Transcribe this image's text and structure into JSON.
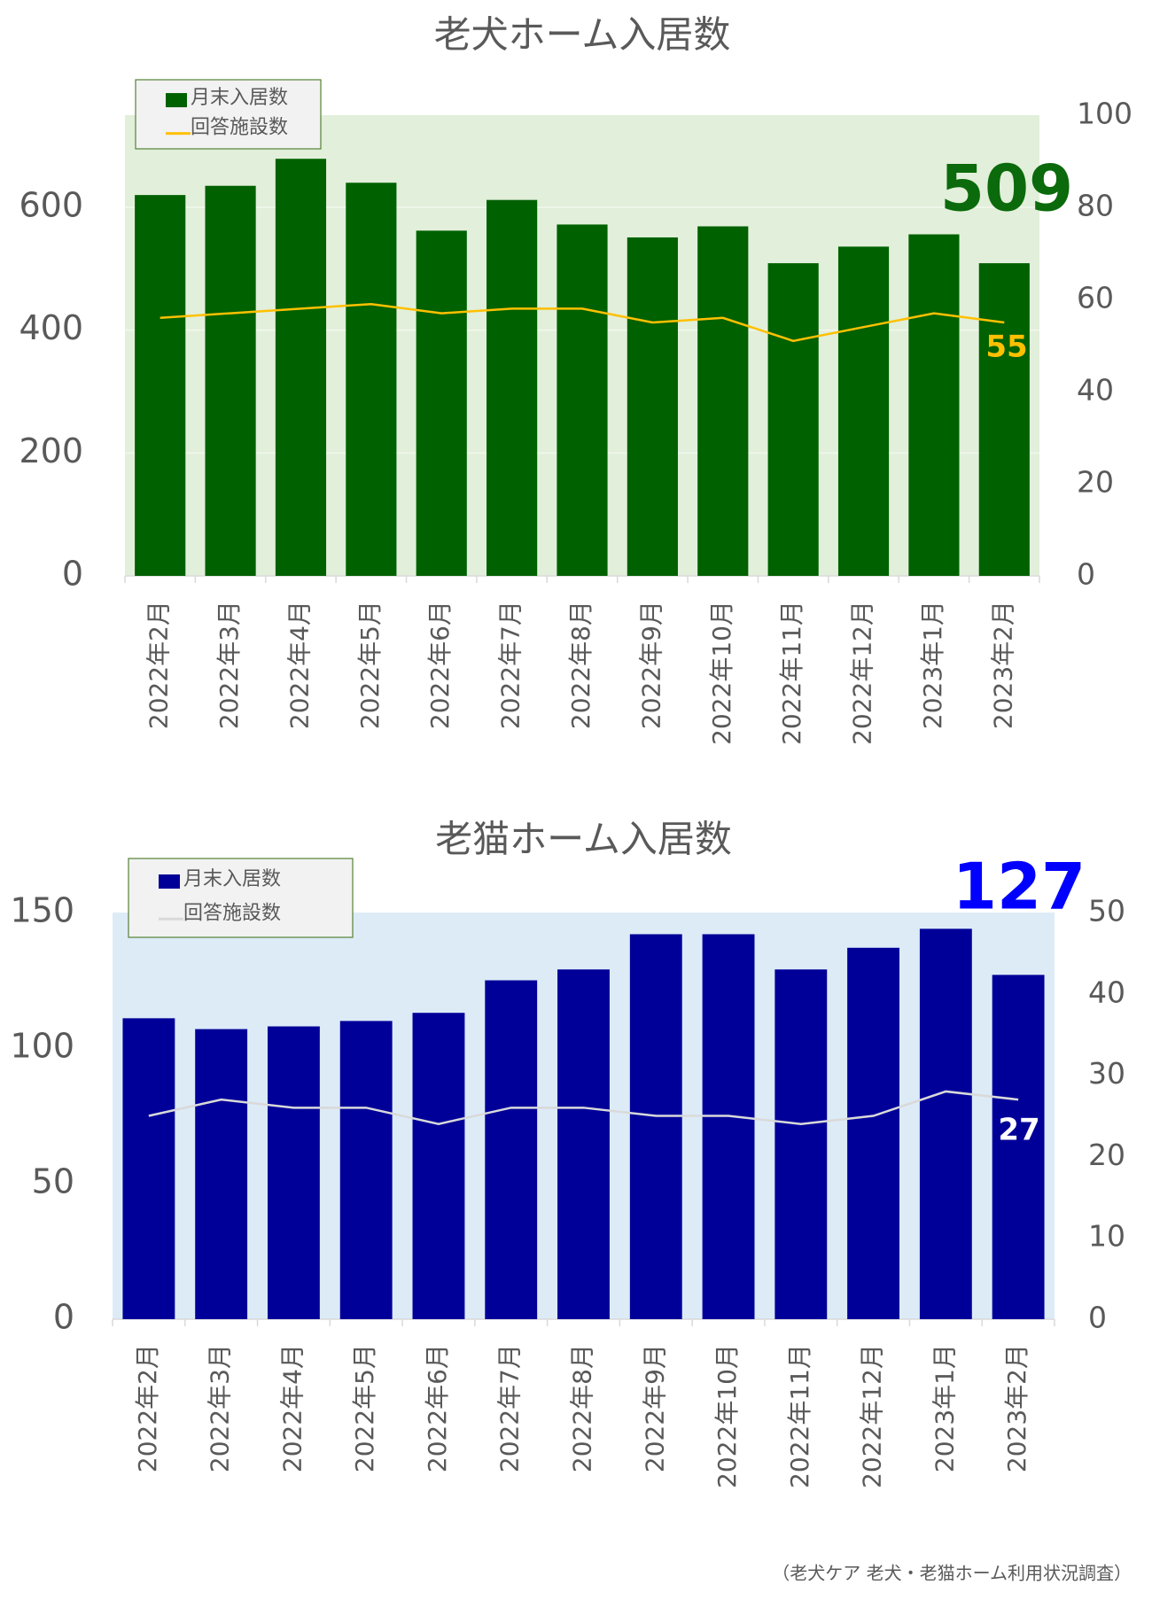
{
  "chart_data": [
    {
      "type": "bar",
      "title": "老犬ホーム入居数",
      "categories": [
        "2022年2月",
        "2022年3月",
        "2022年4月",
        "2022年5月",
        "2022年6月",
        "2022年7月",
        "2022年8月",
        "2022年9月",
        "2022年10月",
        "2022年11月",
        "2022年12月",
        "2023年1月",
        "2023年2月"
      ],
      "series": [
        {
          "name": "月末入居数",
          "color": "#006100",
          "label_color": "#0b6a0b",
          "values": [
            620,
            635,
            679,
            640,
            562,
            612,
            572,
            551,
            569,
            509,
            536,
            556,
            509
          ]
        },
        {
          "name": "回答施設数",
          "type": "line",
          "axis": "y2",
          "color": "#ffc000",
          "label_color": "#ffc000",
          "values": [
            56,
            57,
            58,
            59,
            57,
            58,
            58,
            55,
            56,
            51,
            54,
            57,
            55
          ]
        }
      ],
      "ylim": [
        0,
        750
      ],
      "yticks": [
        0,
        200,
        400,
        600
      ],
      "y2lim": [
        0,
        100
      ],
      "y2ticks": [
        0,
        20,
        40,
        60,
        80,
        100
      ],
      "grid": true,
      "plot_background": "#e2efda"
    },
    {
      "type": "bar",
      "title": "老猫ホーム入居数",
      "categories": [
        "2022年2月",
        "2022年3月",
        "2022年4月",
        "2022年5月",
        "2022年6月",
        "2022年7月",
        "2022年8月",
        "2022年9月",
        "2022年10月",
        "2022年11月",
        "2022年12月",
        "2023年1月",
        "2023年2月"
      ],
      "series": [
        {
          "name": "月末入居数",
          "color": "#000099",
          "label_color": "#0000ff",
          "values": [
            111,
            107,
            108,
            110,
            113,
            125,
            129,
            142,
            142,
            129,
            137,
            144,
            127
          ]
        },
        {
          "name": "回答施設数",
          "type": "line",
          "axis": "y2",
          "color": "#d9d9d9",
          "label_color": "#ffffff",
          "values": [
            25,
            27,
            26,
            26,
            24,
            26,
            26,
            25,
            25,
            24,
            25,
            28,
            27
          ]
        }
      ],
      "ylim": [
        0,
        150
      ],
      "yticks": [
        0,
        50,
        100,
        150
      ],
      "y2lim": [
        0,
        50
      ],
      "y2ticks": [
        0,
        10,
        20,
        30,
        40,
        50
      ],
      "grid": false,
      "plot_background": "#ddebf7"
    }
  ],
  "source": "（老犬ケア 老犬・老猫ホーム利用状況調査）"
}
